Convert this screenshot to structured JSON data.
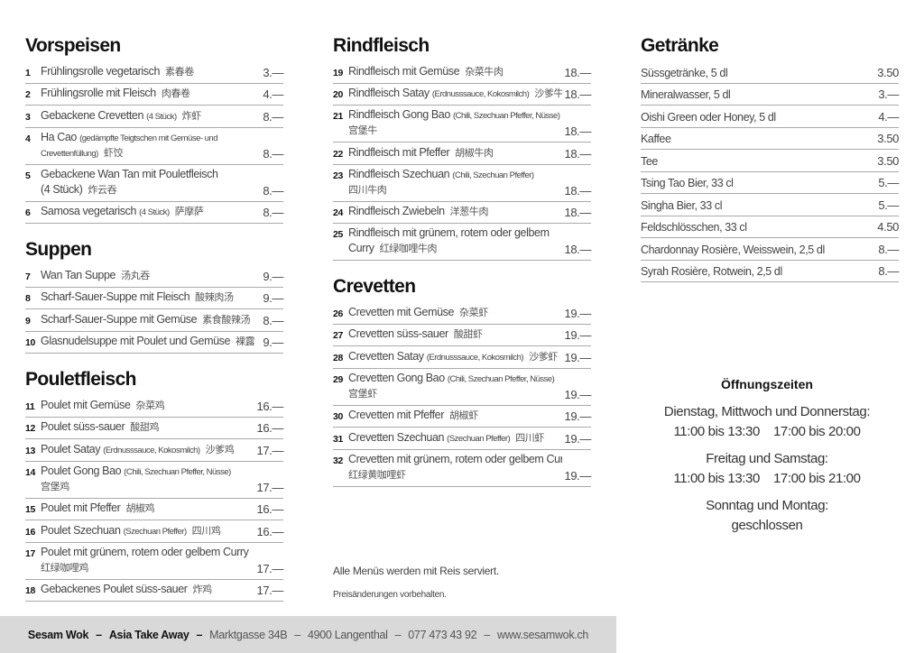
{
  "columns": [
    {
      "sections": [
        {
          "title": "Vorspeisen",
          "items": [
            {
              "num": "1",
              "name": "Frühlingsrolle vegetarisch",
              "zh": "素春卷",
              "price": "3.—"
            },
            {
              "num": "2",
              "name": "Frühlingsrolle mit Fleisch",
              "zh": "肉春卷",
              "price": "4.—"
            },
            {
              "num": "3",
              "name": "Gebackene Crevetten",
              "note": "(4 Stück)",
              "zh": "炸虾",
              "price": "8.—"
            },
            {
              "num": "4",
              "name": "Ha Cao",
              "note": "(gedämpfte Teigtschen mit Gemüse- und",
              "note2": "Crevettenfüllung)",
              "zh": "虾饺",
              "wrap": true,
              "price": "8.—"
            },
            {
              "num": "5",
              "name": "Gebackene Wan Tan mit Pouletfleisch",
              "name2": "(4 Stück)",
              "zh": "炸云吞",
              "wrap": true,
              "price": "8.—"
            },
            {
              "num": "6",
              "name": "Samosa vegetarisch",
              "note": "(4 Stück)",
              "zh": "萨摩萨",
              "price": "8.—"
            }
          ]
        },
        {
          "title": "Suppen",
          "items": [
            {
              "num": "7",
              "name": "Wan Tan Suppe",
              "zh": "汤丸吞",
              "price": "9.—"
            },
            {
              "num": "8",
              "name": "Scharf-Sauer-Suppe mit Fleisch",
              "zh": "酸辣肉汤",
              "price": "9.—"
            },
            {
              "num": "9",
              "name": "Scharf-Sauer-Suppe mit Gemüse",
              "zh": "素食酸辣汤",
              "price": "8.—"
            },
            {
              "num": "10",
              "name": "Glasnudelsuppe mit Poulet und Gemüse",
              "zh": "裸露汤",
              "price": "9.—"
            }
          ]
        },
        {
          "title": "Pouletfleisch",
          "items": [
            {
              "num": "11",
              "name": "Poulet mit Gemüse",
              "zh": "杂菜鸡",
              "price": "16.—"
            },
            {
              "num": "12",
              "name": "Poulet süss-sauer",
              "zh": "酸甜鸡",
              "price": "16.—"
            },
            {
              "num": "13",
              "name": "Poulet Satay",
              "note": "(Erdnusssauce, Kokosmilch)",
              "zh": "沙爹鸡",
              "price": "17.—"
            },
            {
              "num": "14",
              "name": "Poulet Gong Bao",
              "note": "(Chili, Szechuan Pfeffer, Nüsse)",
              "zh": "宫堡鸡",
              "wrap": true,
              "price": "17.—"
            },
            {
              "num": "15",
              "name": "Poulet mit Pfeffer",
              "zh": "胡椒鸡",
              "price": "16.—"
            },
            {
              "num": "16",
              "name": "Poulet Szechuan",
              "note": "(Szechuan Pfeffer)",
              "zh": "四川鸡",
              "price": "16.—"
            },
            {
              "num": "17",
              "name": "Poulet mit grünem, rotem oder gelbem Curry",
              "zh": "红绿咖哩鸡",
              "wrap": true,
              "price": "17.—"
            },
            {
              "num": "18",
              "name": "Gebackenes Poulet süss-sauer",
              "zh": "炸鸡",
              "price": "17.—"
            }
          ]
        }
      ]
    },
    {
      "sections": [
        {
          "title": "Rindfleisch",
          "items": [
            {
              "num": "19",
              "name": "Rindfleisch mit Gemüse",
              "zh": "杂菜牛肉",
              "price": "18.—"
            },
            {
              "num": "20",
              "name": "Rindfleisch Satay",
              "note": "(Erdnusssauce, Kokosmilch)",
              "zh": "沙爹牛",
              "price": "18.—"
            },
            {
              "num": "21",
              "name": "Rindfleisch Gong Bao",
              "note": "(Chili, Szechuan Pfeffer, Nüsse)",
              "zh": "宫堡牛",
              "wrap": true,
              "price": "18.—"
            },
            {
              "num": "22",
              "name": "Rindfleisch mit Pfeffer",
              "zh": "胡椒牛肉",
              "price": "18.—"
            },
            {
              "num": "23",
              "name": "Rindfleisch Szechuan",
              "note": "(Chili, Szechuan Pfeffer)",
              "zh": "四川牛肉",
              "wrap": true,
              "price": "18.—"
            },
            {
              "num": "24",
              "name": "Rindfleisch Zwiebeln",
              "zh": "洋葱牛肉",
              "price": "18.—"
            },
            {
              "num": "25",
              "name": "Rindfleisch mit grünem, rotem oder gelbem",
              "name2": "Curry",
              "zh": "红绿咖哩牛肉",
              "wrap": true,
              "price": "18.—"
            }
          ]
        },
        {
          "title": "Crevetten",
          "items": [
            {
              "num": "26",
              "name": "Crevetten mit Gemüse",
              "zh": "杂菜虾",
              "price": "19.—"
            },
            {
              "num": "27",
              "name": "Crevetten süss-sauer",
              "zh": "酸甜虾",
              "price": "19.—"
            },
            {
              "num": "28",
              "name": "Crevetten Satay",
              "note": "(Erdnusssauce, Kokosmilch)",
              "zh": "沙爹虾",
              "price": "19.—"
            },
            {
              "num": "29",
              "name": "Crevetten Gong Bao",
              "note": "(Chili, Szechuan Pfeffer, Nüsse)",
              "zh": "宫堡虾",
              "wrap": true,
              "price": "19.—"
            },
            {
              "num": "30",
              "name": "Crevetten mit Pfeffer",
              "zh": "胡椒虾",
              "price": "19.—"
            },
            {
              "num": "31",
              "name": "Crevetten Szechuan",
              "note": "(Szechuan Pfeffer)",
              "zh": "四川虾",
              "price": "19.—"
            },
            {
              "num": "32",
              "name": "Crevetten mit grünem, rotem oder gelbem Curry",
              "zh": "红绿黄咖哩虾",
              "wrap": true,
              "price": "19.—"
            }
          ]
        }
      ]
    }
  ],
  "drinks": {
    "title": "Getränke",
    "items": [
      {
        "name": "Süssgetränke, 5 dl",
        "price": "3.50"
      },
      {
        "name": "Mineralwasser, 5 dl",
        "price": "3.—"
      },
      {
        "name": "Oishi Green oder Honey, 5 dl",
        "price": "4.—"
      },
      {
        "name": "Kaffee",
        "price": "3.50"
      },
      {
        "name": "Tee",
        "price": "3.50"
      },
      {
        "name": "Tsing Tao Bier, 33 cl",
        "price": "5.—"
      },
      {
        "name": "Singha Bier, 33 cl",
        "price": "5.—"
      },
      {
        "name": "Feldschlösschen, 33 cl",
        "price": "4.50"
      },
      {
        "name": "Chardonnay Rosière, Weisswein, 2,5 dl",
        "price": "8.—"
      },
      {
        "name": "Syrah Rosière, Rotwein, 2,5 dl",
        "price": "8.—"
      }
    ]
  },
  "hours": {
    "title": "Öffnungszeiten",
    "blocks": [
      {
        "days": "Dienstag, Mittwoch und Donnerstag:",
        "times": "11:00 bis 13:30    17:00 bis 20:00"
      },
      {
        "days": "Freitag und Samstag:",
        "times": "11:00 bis 13:30    17:00 bis 21:00"
      },
      {
        "days": "Sonntag und Montag:",
        "times": "geschlossen"
      }
    ]
  },
  "notes": {
    "rice": "Alle Menüs werden mit Reis serviert.",
    "prices": "Preisänderungen vorbehalten."
  },
  "footer": {
    "name": "Sesam Wok",
    "tagline": "Asia Take Away",
    "address": "Marktgasse 34B",
    "city": "4900 Langenthal",
    "phone": "077 473 43 92",
    "web": "www.sesamwok.ch",
    "sep": "–"
  }
}
